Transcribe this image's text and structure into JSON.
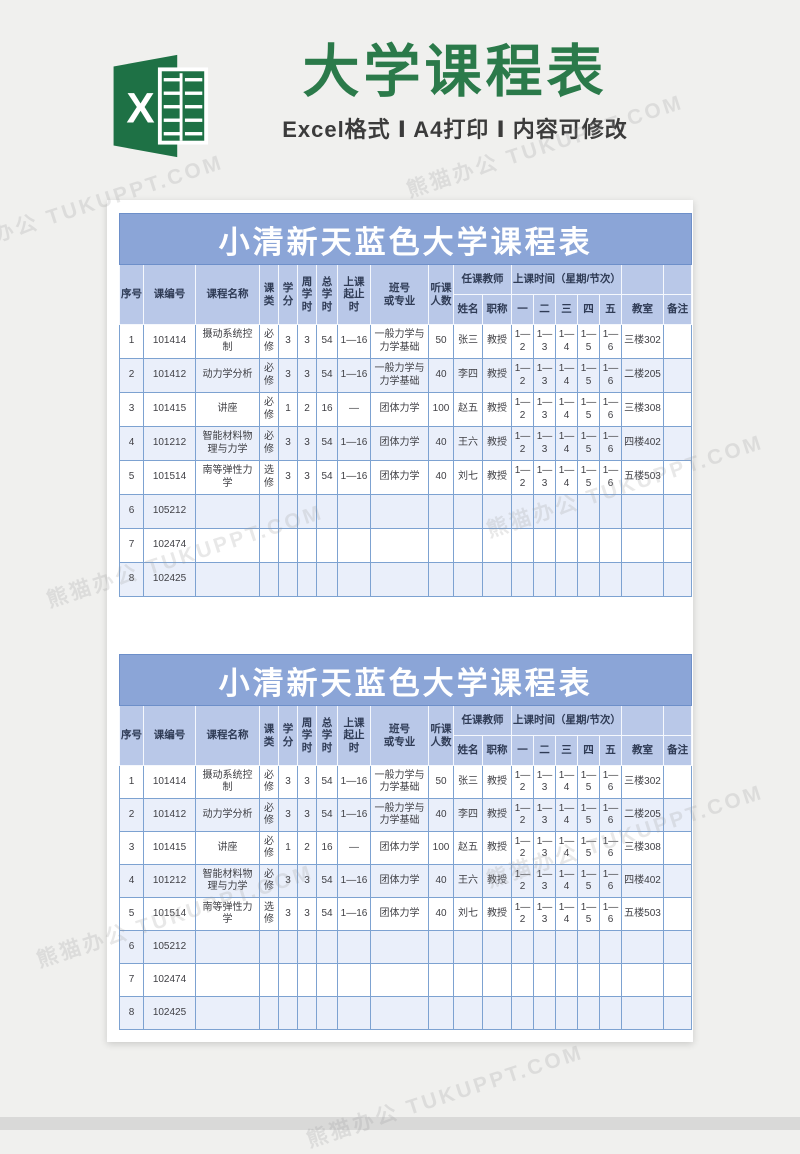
{
  "header": {
    "title": "大学课程表",
    "subtitle": "Excel格式 Ⅰ A4打印 Ⅰ 内容可修改",
    "excel_icon_letter": "X"
  },
  "watermark": "熊猫办公 TUKUPPT.COM",
  "table": {
    "banner": "小清新天蓝色大学课程表",
    "headers": {
      "seq": "序号",
      "course_code": "课编号",
      "course_name": "课程名称",
      "course_type": "课\n类",
      "credit": "学\n分",
      "weekly_hours": "周\n学\n时",
      "total_hours": "总\n学\n时",
      "class_period": "上课\n起止\n时",
      "class_or_major": "班号\n或专业",
      "student_count": "听课\n人数",
      "teacher_group": "任课教师",
      "time_group": "上课时间（星期/节次）",
      "teacher_name": "姓名",
      "teacher_title": "职称",
      "days": [
        "一",
        "二",
        "三",
        "四",
        "五"
      ],
      "classroom": "教室",
      "remark": "备注"
    },
    "rows": [
      [
        "1",
        "101414",
        "摄动系统控制",
        "必修",
        "3",
        "3",
        "54",
        "1—16",
        "一般力学与力学基础",
        "50",
        "张三",
        "教授",
        "1—2",
        "1—3",
        "1—4",
        "1—5",
        "1—6",
        "三楼302",
        ""
      ],
      [
        "2",
        "101412",
        "动力学分析",
        "必修",
        "3",
        "3",
        "54",
        "1—16",
        "一般力学与力学基础",
        "40",
        "李四",
        "教授",
        "1—2",
        "1—3",
        "1—4",
        "1—5",
        "1—6",
        "二楼205",
        ""
      ],
      [
        "3",
        "101415",
        "讲座",
        "必修",
        "1",
        "2",
        "16",
        "—",
        "团体力学",
        "100",
        "赵五",
        "教授",
        "1—2",
        "1—3",
        "1—4",
        "1—5",
        "1—6",
        "三楼308",
        ""
      ],
      [
        "4",
        "101212",
        "智能材料物理与力学",
        "必修",
        "3",
        "3",
        "54",
        "1—16",
        "团体力学",
        "40",
        "王六",
        "教授",
        "1—2",
        "1—3",
        "1—4",
        "1—5",
        "1—6",
        "四楼402",
        ""
      ],
      [
        "5",
        "101514",
        "南等弹性力学",
        "选修",
        "3",
        "3",
        "54",
        "1—16",
        "团体力学",
        "40",
        "刘七",
        "教授",
        "1—2",
        "1—3",
        "1—4",
        "1—5",
        "1—6",
        "五楼503",
        ""
      ],
      [
        "6",
        "105212",
        "",
        "",
        "",
        "",
        "",
        "",
        "",
        "",
        "",
        "",
        "",
        "",
        "",
        "",
        "",
        "",
        ""
      ],
      [
        "7",
        "102474",
        "",
        "",
        "",
        "",
        "",
        "",
        "",
        "",
        "",
        "",
        "",
        "",
        "",
        "",
        "",
        "",
        ""
      ],
      [
        "8",
        "102425",
        "",
        "",
        "",
        "",
        "",
        "",
        "",
        "",
        "",
        "",
        "",
        "",
        "",
        "",
        "",
        "",
        ""
      ]
    ]
  }
}
